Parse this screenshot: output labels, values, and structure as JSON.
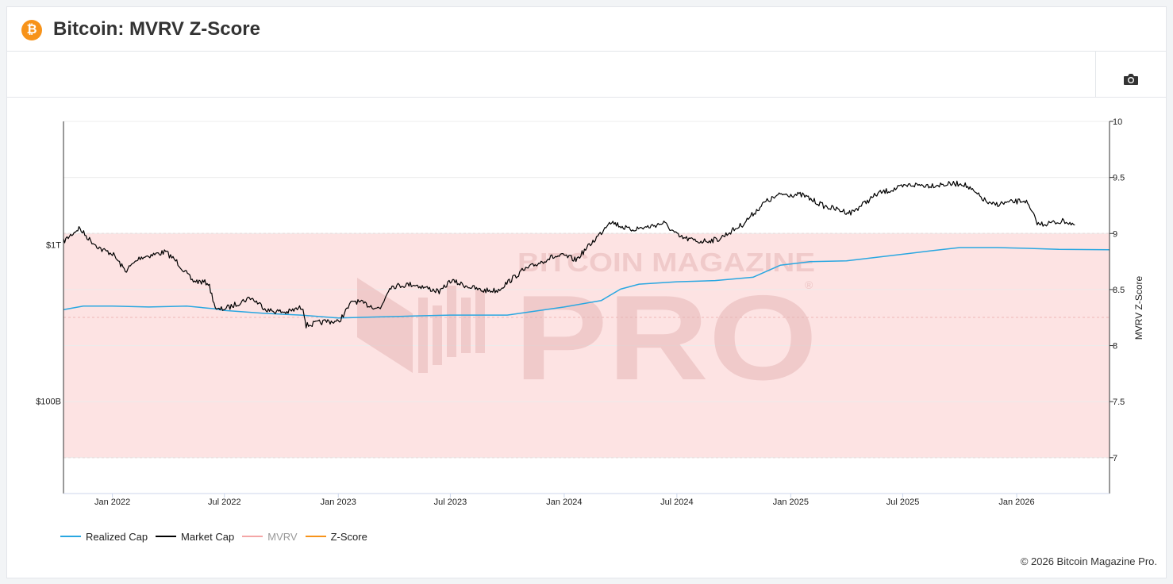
{
  "header": {
    "logo_glyph": "₿",
    "title": "Bitcoin: MVRV Z-Score"
  },
  "toolbar": {
    "camera_icon": "camera-icon"
  },
  "watermark": {
    "line1": "BITCOIN MAGAZINE",
    "line2": "PRO",
    "mark": "®"
  },
  "legend": [
    {
      "label": "Realized Cap",
      "color": "#29a7e1",
      "dimmed": false
    },
    {
      "label": "Market Cap",
      "color": "#000000",
      "dimmed": false
    },
    {
      "label": "MVRV",
      "color": "#f4a6a6",
      "dimmed": true
    },
    {
      "label": "Z-Score",
      "color": "#f7931a",
      "dimmed": false
    }
  ],
  "copyright": "© 2026 Bitcoin Magazine Pro.",
  "colors": {
    "band_fill": "#fde3e3",
    "band_line": "#e59a9a",
    "realized": "#29a7e1",
    "market": "#000000"
  },
  "chart_data": {
    "type": "line",
    "x_ticks": [
      "Jan 2022",
      "Jul 2022",
      "Jan 2023",
      "Jul 2023",
      "Jan 2024",
      "Jul 2024",
      "Jan 2025",
      "Jul 2025",
      "Jan 2026"
    ],
    "x_tick_dates": [
      "2022-01-01",
      "2022-07-01",
      "2023-01-01",
      "2023-07-01",
      "2024-01-01",
      "2024-07-01",
      "2025-01-01",
      "2025-07-01",
      "2026-01-01"
    ],
    "x_range": [
      "2021-10-14",
      "2026-05-31"
    ],
    "y_left": {
      "scale": "log",
      "ticks": [
        {
          "label": "$1T",
          "value": 1000
        },
        {
          "label": "$100B",
          "value": 100
        }
      ],
      "unit": "billion USD"
    },
    "y_right": {
      "label": "MVRV Z-Score",
      "ticks": [
        "10",
        "9.5",
        "9",
        "8.5",
        "8",
        "7.5",
        "7"
      ],
      "range": [
        6.68,
        10
      ]
    },
    "shaded_band": {
      "from": 7,
      "to": 9
    },
    "grid": true,
    "legend_position": "bottom-left",
    "series": [
      {
        "name": "Realized Cap",
        "axis": "left",
        "points": [
          [
            "2021-10-14",
            385
          ],
          [
            "2021-11-15",
            405
          ],
          [
            "2022-01-01",
            405
          ],
          [
            "2022-03-01",
            400
          ],
          [
            "2022-05-01",
            405
          ],
          [
            "2022-06-15",
            390
          ],
          [
            "2022-07-01",
            380
          ],
          [
            "2022-09-01",
            365
          ],
          [
            "2022-11-01",
            355
          ],
          [
            "2023-01-01",
            340
          ],
          [
            "2023-03-01",
            345
          ],
          [
            "2023-05-01",
            350
          ],
          [
            "2023-07-01",
            355
          ],
          [
            "2023-10-01",
            355
          ],
          [
            "2024-01-01",
            400
          ],
          [
            "2024-03-01",
            440
          ],
          [
            "2024-04-01",
            520
          ],
          [
            "2024-05-01",
            560
          ],
          [
            "2024-07-01",
            580
          ],
          [
            "2024-09-01",
            590
          ],
          [
            "2024-11-01",
            620
          ],
          [
            "2024-12-15",
            740
          ],
          [
            "2025-02-01",
            780
          ],
          [
            "2025-04-01",
            790
          ],
          [
            "2025-07-01",
            870
          ],
          [
            "2025-08-15",
            915
          ],
          [
            "2025-10-01",
            960
          ],
          [
            "2025-12-01",
            960
          ],
          [
            "2026-01-15",
            950
          ],
          [
            "2026-03-10",
            935
          ],
          [
            "2026-05-31",
            930
          ]
        ]
      },
      {
        "name": "Market Cap",
        "axis": "left",
        "points": [
          [
            "2021-10-14",
            1050
          ],
          [
            "2021-11-08",
            1280
          ],
          [
            "2021-11-25",
            1080
          ],
          [
            "2021-12-15",
            930
          ],
          [
            "2022-01-01",
            880
          ],
          [
            "2022-01-22",
            680
          ],
          [
            "2022-02-15",
            830
          ],
          [
            "2022-03-28",
            900
          ],
          [
            "2022-04-15",
            780
          ],
          [
            "2022-05-10",
            590
          ],
          [
            "2022-06-05",
            570
          ],
          [
            "2022-06-18",
            380
          ],
          [
            "2022-07-10",
            400
          ],
          [
            "2022-08-12",
            460
          ],
          [
            "2022-09-10",
            380
          ],
          [
            "2022-10-10",
            370
          ],
          [
            "2022-11-05",
            400
          ],
          [
            "2022-11-10",
            305
          ],
          [
            "2022-12-15",
            325
          ],
          [
            "2023-01-01",
            320
          ],
          [
            "2023-01-25",
            440
          ],
          [
            "2023-03-10",
            390
          ],
          [
            "2023-03-25",
            540
          ],
          [
            "2023-05-01",
            560
          ],
          [
            "2023-06-15",
            500
          ],
          [
            "2023-07-01",
            590
          ],
          [
            "2023-08-20",
            510
          ],
          [
            "2023-09-15",
            510
          ],
          [
            "2023-10-25",
            680
          ],
          [
            "2023-12-10",
            830
          ],
          [
            "2024-01-01",
            850
          ],
          [
            "2024-01-20",
            800
          ],
          [
            "2024-03-01",
            1200
          ],
          [
            "2024-03-14",
            1420
          ],
          [
            "2024-04-15",
            1250
          ],
          [
            "2024-05-15",
            1300
          ],
          [
            "2024-06-10",
            1380
          ],
          [
            "2024-07-05",
            1120
          ],
          [
            "2024-08-05",
            1050
          ],
          [
            "2024-09-05",
            1080
          ],
          [
            "2024-10-15",
            1350
          ],
          [
            "2024-11-20",
            1870
          ],
          [
            "2024-12-17",
            2110
          ],
          [
            "2025-01-20",
            2080
          ],
          [
            "2025-02-25",
            1760
          ],
          [
            "2025-04-08",
            1600
          ],
          [
            "2025-05-22",
            2130
          ],
          [
            "2025-07-14",
            2420
          ],
          [
            "2025-08-14",
            2400
          ],
          [
            "2025-10-06",
            2470
          ],
          [
            "2025-11-20",
            1800
          ],
          [
            "2026-01-15",
            1920
          ],
          [
            "2026-02-05",
            1350
          ],
          [
            "2026-02-20",
            1370
          ],
          [
            "2026-03-20",
            1420
          ],
          [
            "2026-04-05",
            1340
          ]
        ]
      }
    ]
  }
}
